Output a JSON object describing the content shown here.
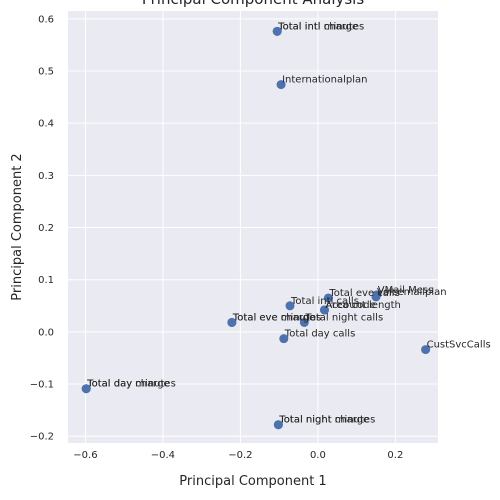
{
  "chart_data": {
    "type": "scatter",
    "title": "Principal Component Analysis",
    "xlabel": "Principal Component 1",
    "ylabel": "Principal Component 2",
    "xlim": [
      -0.645,
      0.31
    ],
    "ylim": [
      -0.213,
      0.615
    ],
    "xticks": [
      -0.6,
      -0.4,
      -0.2,
      0.0,
      0.2
    ],
    "xtick_labels": [
      "−0.6",
      "−0.4",
      "−0.2",
      "0.0",
      "0.2"
    ],
    "yticks": [
      -0.2,
      -0.1,
      0.0,
      0.1,
      0.2,
      0.3,
      0.4,
      0.5,
      0.6
    ],
    "ytick_labels": [
      "−0.2",
      "−0.1",
      "0.0",
      "0.1",
      "0.2",
      "0.3",
      "0.4",
      "0.5",
      "0.6"
    ],
    "grid": true,
    "background_color": "#eaeaf2",
    "point_color": "#4c72b0",
    "points": [
      {
        "x": -0.105,
        "y": 0.576,
        "label": "Total intl minutes"
      },
      {
        "x": -0.105,
        "y": 0.576,
        "label": "Total intl charge"
      },
      {
        "x": -0.095,
        "y": 0.474,
        "label": "Internationalplan"
      },
      {
        "x": 0.152,
        "y": 0.071,
        "label": "VMail Mess"
      },
      {
        "x": 0.15,
        "y": 0.067,
        "label": "Voicemailplan"
      },
      {
        "x": 0.027,
        "y": 0.065,
        "label": "Total eve calls"
      },
      {
        "x": -0.072,
        "y": 0.05,
        "label": "Total intl calls"
      },
      {
        "x": 0.017,
        "y": 0.042,
        "label": "Account length"
      },
      {
        "x": 0.017,
        "y": 0.042,
        "label": "Area code"
      },
      {
        "x": -0.222,
        "y": 0.018,
        "label": "Total eve minutes"
      },
      {
        "x": -0.222,
        "y": 0.018,
        "label": "Total eve charge"
      },
      {
        "x": -0.035,
        "y": 0.018,
        "label": "Total night calls"
      },
      {
        "x": -0.088,
        "y": -0.013,
        "label": "Total day calls"
      },
      {
        "x": 0.278,
        "y": -0.034,
        "label": "CustSvcCalls"
      },
      {
        "x": -0.598,
        "y": -0.109,
        "label": "Total day minutes"
      },
      {
        "x": -0.598,
        "y": -0.109,
        "label": "Total day charge"
      },
      {
        "x": -0.102,
        "y": -0.178,
        "label": "Total night minutes"
      },
      {
        "x": -0.102,
        "y": -0.178,
        "label": "Total night charge"
      }
    ]
  }
}
